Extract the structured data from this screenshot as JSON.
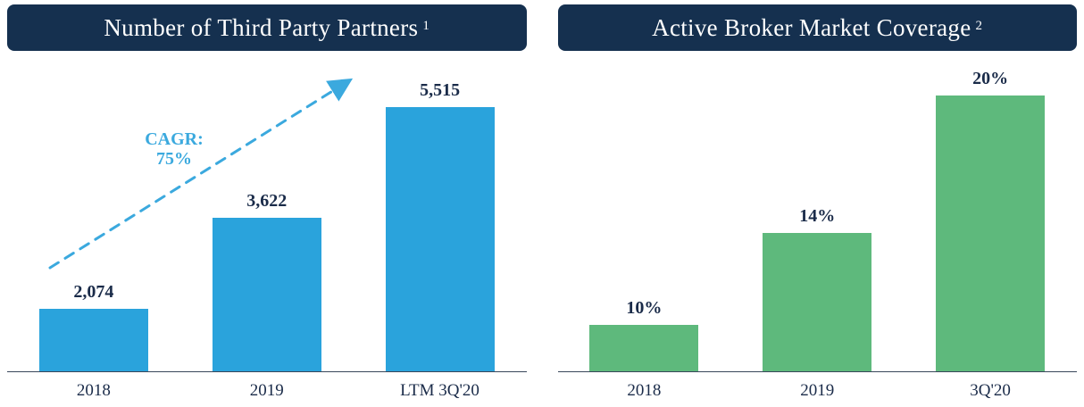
{
  "colors": {
    "header_bg": "#15304F",
    "header_text": "#FFFFFF",
    "label_text": "#1A2B49",
    "axis": "#39475A",
    "accent_blue": "#3BA9DE",
    "bar_blue": "#2AA3DC",
    "bar_green": "#5EB97C"
  },
  "chart_data": [
    {
      "type": "bar",
      "title": "Number of Third Party Partners",
      "footnote": "1",
      "categories": [
        "2018",
        "2019",
        "LTM 3Q'20"
      ],
      "values": [
        2074,
        3622,
        5515
      ],
      "value_labels": [
        "2,074",
        "3,622",
        "5,515"
      ],
      "ylim": [
        1000,
        5515
      ],
      "grid": "off",
      "legend": "none",
      "bar_color": "#2AA3DC",
      "annotation": {
        "line1": "CAGR:",
        "line2": "75%",
        "color": "#3BA9DE",
        "arrow": "dashed-up-right"
      }
    },
    {
      "type": "bar",
      "title": "Active Broker Market Coverage",
      "footnote": "2",
      "categories": [
        "2018",
        "2019",
        "3Q'20"
      ],
      "values": [
        10,
        14,
        20
      ],
      "value_labels": [
        "10%",
        "14%",
        "20%"
      ],
      "ylim": [
        8,
        20
      ],
      "grid": "off",
      "legend": "none",
      "bar_color": "#5EB97C"
    }
  ]
}
